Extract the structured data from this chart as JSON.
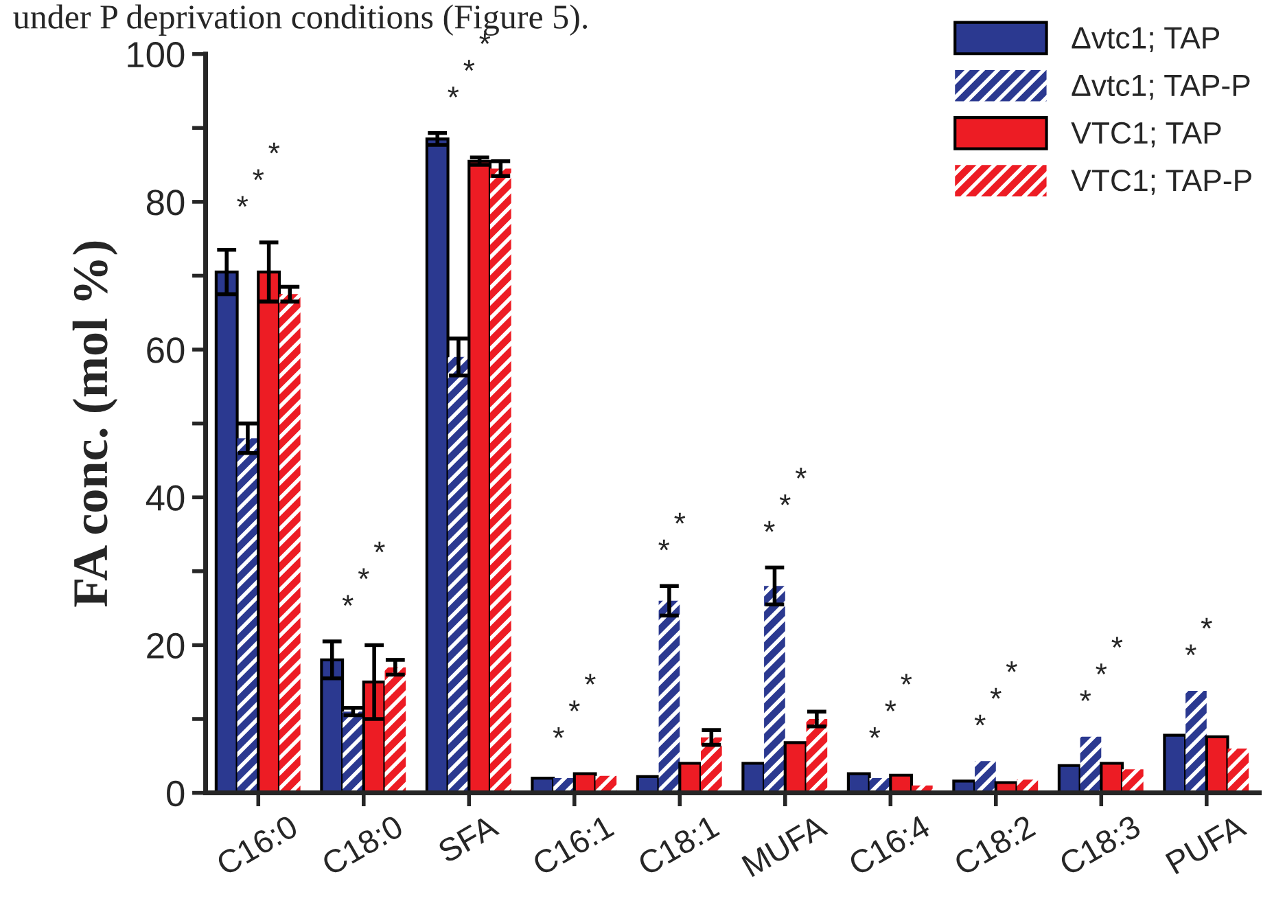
{
  "chart_data": {
    "type": "bar",
    "ylabel": "FA conc. (mol %)",
    "categories": [
      "C16:0",
      "C18:0",
      "SFA",
      "C16:1",
      "C18:1",
      "MUFA",
      "C16:4",
      "C18:2",
      "C18:3",
      "PUFA"
    ],
    "series": [
      {
        "name": "Δvtc1; TAP",
        "color": "#2b3990",
        "values": [
          70.5,
          18,
          88.5,
          2,
          2.2,
          4,
          2.6,
          1.6,
          3.7,
          7.8
        ],
        "errors": [
          3,
          2.5,
          0.8,
          null,
          null,
          null,
          null,
          null,
          null,
          null
        ]
      },
      {
        "name": "Δvtc1; TAP-P",
        "color": "#2b3990",
        "values": [
          48,
          11,
          59,
          2,
          26,
          28,
          2,
          4.3,
          7.6,
          13.8
        ],
        "errors": [
          2,
          0.5,
          2.5,
          null,
          2,
          2.5,
          null,
          null,
          null,
          null
        ]
      },
      {
        "name": "VTC1; TAP",
        "color": "#ed1c24",
        "values": [
          70.5,
          15,
          85.5,
          2.6,
          4,
          6.8,
          2.4,
          1.4,
          4,
          7.6
        ],
        "errors": [
          4,
          5,
          0.5,
          null,
          null,
          null,
          null,
          null,
          null,
          null
        ]
      },
      {
        "name": "VTC1; TAP-P",
        "color": "#ed1c24",
        "values": [
          67.5,
          17,
          84.5,
          2.3,
          7.5,
          10,
          1,
          1.8,
          3.2,
          6
        ],
        "errors": [
          1,
          1,
          1,
          null,
          1,
          1,
          null,
          null,
          null,
          null
        ]
      }
    ],
    "ylim": [
      0,
      100
    ],
    "yticks": [
      0,
      {
        "value": 10,
        "label": null
      },
      20,
      {
        "value": 30,
        "label": null
      },
      40,
      {
        "value": 50,
        "label": null
      },
      60,
      {
        "value": 70,
        "label": null
      },
      80,
      {
        "value": 90,
        "label": null
      },
      100
    ],
    "legend": "top right",
    "grid": false,
    "annotations": [
      "under P deprivation conditions (Figure 5).",
      "*",
      "*",
      "*",
      "*",
      "*",
      "*",
      "*",
      "*",
      "*",
      "*",
      "*",
      "*",
      "*",
      "*",
      "*",
      "*",
      "*",
      "*",
      "*",
      "*",
      "*",
      "*",
      "*",
      "*",
      "*",
      "*",
      "*",
      "*"
    ]
  }
}
